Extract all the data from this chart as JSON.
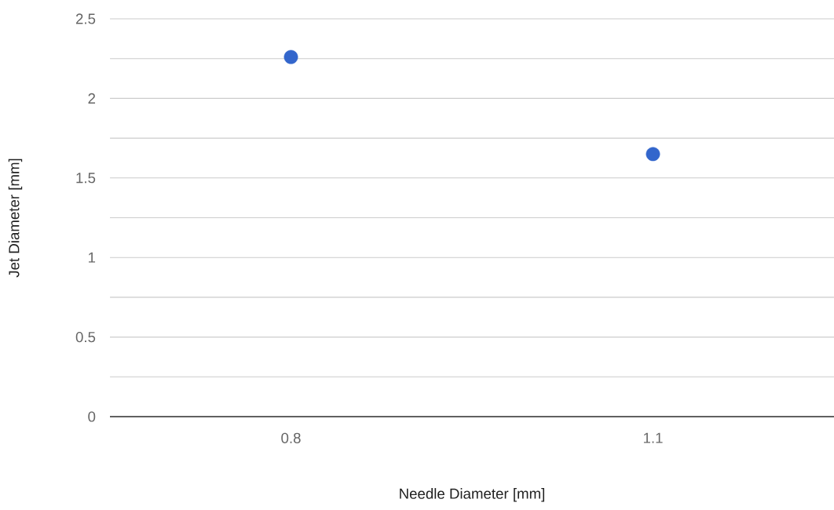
{
  "chart_data": {
    "type": "scatter",
    "xlabel": "Needle Diameter [mm]",
    "ylabel": "Jet Diameter [mm]",
    "categories": [
      "0.8",
      "1.1"
    ],
    "series": [
      {
        "color": "#3366cc",
        "values": [
          2.26,
          1.65
        ]
      }
    ],
    "ylim": [
      0,
      2.5
    ],
    "yticks": [
      0,
      {
        "value": 0.25,
        "label": null
      },
      0.5,
      {
        "value": 0.75,
        "label": null
      },
      1,
      {
        "value": 1.25,
        "label": null
      },
      1.5,
      {
        "value": 1.75,
        "label": null
      },
      2,
      {
        "value": 2.25,
        "label": null
      },
      2.5
    ],
    "grid": "y"
  }
}
